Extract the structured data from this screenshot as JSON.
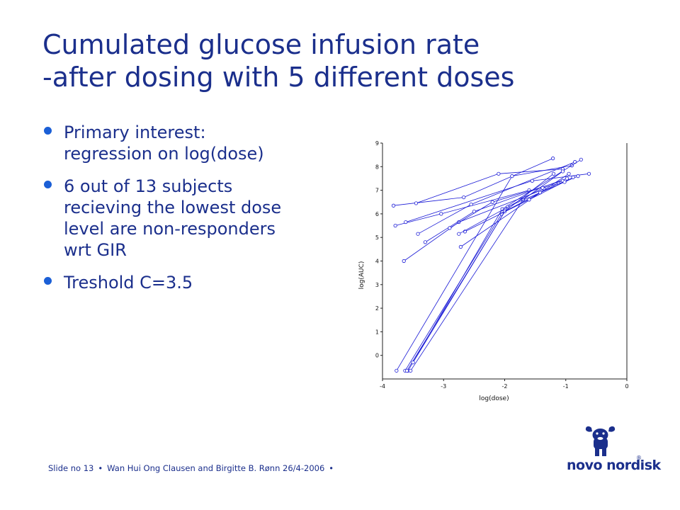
{
  "slide": {
    "title_line1": "Cumulated glucose infusion rate",
    "title_line2": "-after dosing with 5 different doses",
    "bullets": [
      "Primary interest: regression on log(dose)",
      "6 out of 13 subjects recieving the lowest dose level are non-responders wrt GIR",
      "Treshold C=3.5"
    ],
    "footer": {
      "slide_no": "Slide no 13",
      "authors": "Wan Hui Ong Clausen and Birgitte B. Rønn 26/4-2006"
    },
    "logo": {
      "text": "novo nordisk",
      "reg": "®"
    },
    "colors": {
      "title": "#1b2f8c",
      "bullet": "#1b5fd6",
      "series": "#1a1ad6"
    }
  },
  "chart_data": {
    "type": "line",
    "xlabel": "log(dose)",
    "ylabel": "log(AUC)",
    "xlim": [
      -4,
      0
    ],
    "ylim": [
      -1,
      9
    ],
    "xticks": [
      -4,
      -3,
      -2,
      -1,
      0
    ],
    "yticks": [
      0,
      1,
      2,
      3,
      4,
      5,
      6,
      7,
      8,
      9
    ],
    "grid": false,
    "series": [
      {
        "x": [
          -3.82,
          -2.67,
          -1.21
        ],
        "y": [
          6.35,
          6.7,
          8.35
        ]
      },
      {
        "x": [
          -3.45,
          -2.1,
          -1.05
        ],
        "y": [
          6.45,
          7.7,
          7.9
        ]
      },
      {
        "x": [
          -3.79,
          -3.04,
          -1.6
        ],
        "y": [
          5.5,
          6.0,
          7.0
        ]
      },
      {
        "x": [
          -3.42,
          -2.55,
          -0.85
        ],
        "y": [
          5.15,
          6.4,
          8.2
        ]
      },
      {
        "x": [
          -3.62,
          -1.55,
          -0.62
        ],
        "y": [
          5.65,
          7.4,
          7.7
        ]
      },
      {
        "x": [
          -3.65,
          -2.75,
          -1.35
        ],
        "y": [
          4.0,
          5.65,
          7.05
        ]
      },
      {
        "x": [
          -3.3,
          -2.5,
          -0.98
        ],
        "y": [
          4.8,
          6.1,
          7.5
        ]
      },
      {
        "x": [
          -3.77,
          -1.88,
          -0.9
        ],
        "y": [
          -0.65,
          7.6,
          8.05
        ]
      },
      {
        "x": [
          -3.63,
          -2.05,
          -1.2
        ],
        "y": [
          -0.65,
          6.0,
          7.7
        ]
      },
      {
        "x": [
          -3.58,
          -2.04,
          -0.75
        ],
        "y": [
          -0.65,
          6.2,
          8.3
        ]
      },
      {
        "x": [
          -3.54,
          -1.7,
          -1.05
        ],
        "y": [
          -0.65,
          6.6,
          7.8
        ]
      },
      {
        "x": [
          -3.6,
          -1.95,
          -0.8
        ],
        "y": [
          -0.65,
          6.3,
          7.6
        ]
      },
      {
        "x": [
          -3.5,
          -2.0,
          -1.12
        ],
        "y": [
          -0.3,
          6.1,
          7.3
        ]
      },
      {
        "x": [
          -2.72,
          -1.42,
          -0.95
        ],
        "y": [
          4.6,
          6.9,
          7.7
        ]
      },
      {
        "x": [
          -2.9,
          -2.2,
          -1.05
        ],
        "y": [
          5.4,
          6.5,
          7.4
        ]
      },
      {
        "x": [
          -2.65,
          -1.6,
          -0.88
        ],
        "y": [
          5.25,
          6.6,
          7.55
        ]
      },
      {
        "x": [
          -2.75,
          -1.38,
          -1.02
        ],
        "y": [
          5.15,
          7.1,
          7.35
        ]
      }
    ]
  }
}
